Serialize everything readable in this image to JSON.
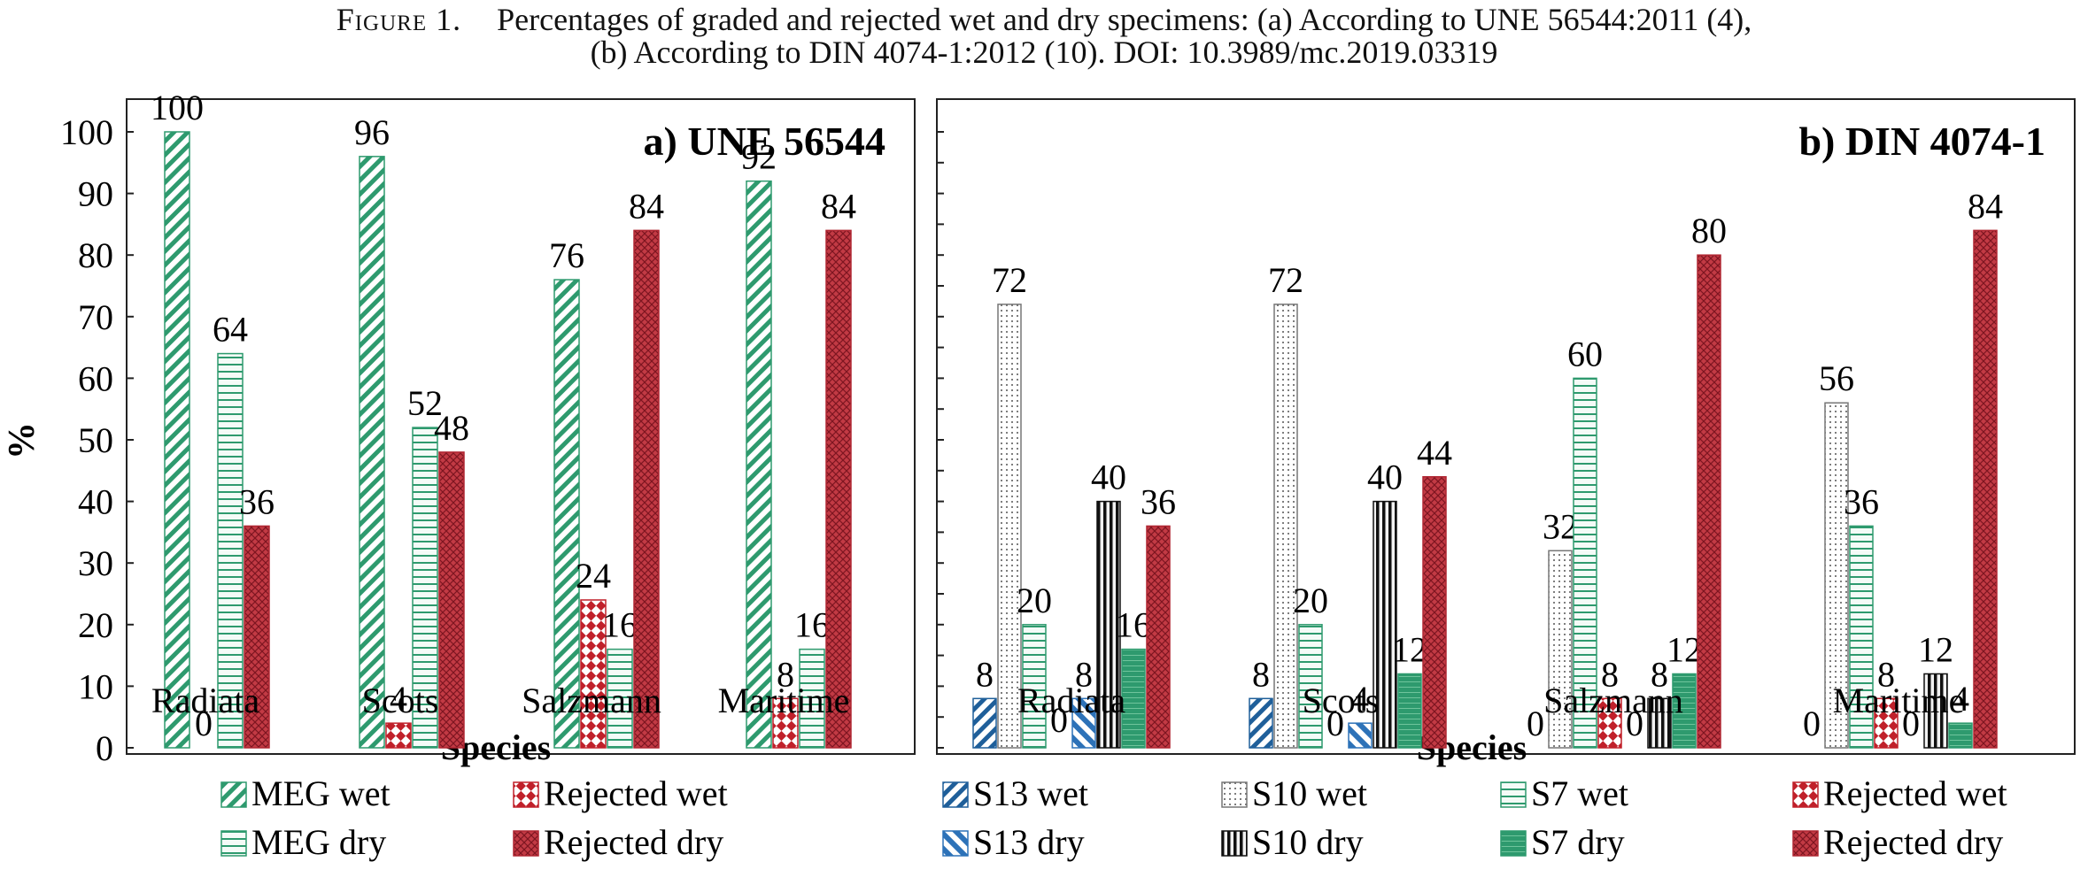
{
  "caption": {
    "label": "Figure 1.",
    "line1": "Percentages of graded and rejected wet and dry specimens: (a) According to UNE 56544:2011 (4),",
    "line2": "(b) According to DIN 4074-1:2012 (10). DOI: 10.3989/mc.2019.03319"
  },
  "chart_data": [
    {
      "type": "bar",
      "title": "a) UNE 56544",
      "xlabel": "Species",
      "ylabel": "%",
      "ylim": [
        0,
        100
      ],
      "yticks": [
        0,
        10,
        20,
        30,
        40,
        50,
        60,
        70,
        80,
        90,
        100
      ],
      "grid": false,
      "legend_position": "bottom",
      "categories": [
        "Radiata",
        "Scots",
        "Salzmann",
        "Maritime"
      ],
      "series": [
        {
          "name": "MEG wet",
          "values": [
            100,
            96,
            76,
            92
          ],
          "color": "#2e9a6e",
          "pattern": "diag"
        },
        {
          "name": "Rejected wet",
          "values": [
            0,
            4,
            24,
            8
          ],
          "color": "#c0202a",
          "pattern": "check"
        },
        {
          "name": "MEG dry",
          "values": [
            64,
            52,
            16,
            16
          ],
          "color": "#2e9a6e",
          "pattern": "hlines"
        },
        {
          "name": "Rejected dry",
          "values": [
            36,
            48,
            84,
            84
          ],
          "color": "#b02632",
          "pattern": "cross"
        }
      ],
      "data_labels": [
        [
          "100",
          "0",
          "64",
          "36"
        ],
        [
          "96",
          "4",
          "52",
          "48"
        ],
        [
          "76",
          "24",
          "16",
          "84"
        ],
        [
          "92",
          "8",
          "16",
          "84"
        ]
      ]
    },
    {
      "type": "bar",
      "title": "b) DIN 4074-1",
      "xlabel": "Species",
      "ylim": [
        0,
        100
      ],
      "grid": false,
      "legend_position": "bottom",
      "categories": [
        "Radiata",
        "Scots",
        "Salzmann",
        "Maritime"
      ],
      "series": [
        {
          "name": "S13 wet",
          "values": [
            8,
            8,
            0,
            0
          ],
          "color": "#1f5f9a",
          "pattern": "diag"
        },
        {
          "name": "S10 wet",
          "values": [
            72,
            72,
            32,
            56
          ],
          "color": "#555555",
          "pattern": "dots"
        },
        {
          "name": "S7 wet",
          "values": [
            20,
            20,
            60,
            36
          ],
          "color": "#2e9a6e",
          "pattern": "hlines"
        },
        {
          "name": "Rejected wet",
          "values": [
            0,
            0,
            8,
            8
          ],
          "color": "#c0202a",
          "pattern": "check"
        },
        {
          "name": "S13 dry",
          "values": [
            8,
            4,
            0,
            0
          ],
          "color": "#2d72b8",
          "pattern": "diag2"
        },
        {
          "name": "S10 dry",
          "values": [
            40,
            40,
            8,
            12
          ],
          "color": "#111111",
          "pattern": "vlines"
        },
        {
          "name": "S7 dry",
          "values": [
            16,
            12,
            12,
            4
          ],
          "color": "#2e9a6e",
          "pattern": "solidgreen"
        },
        {
          "name": "Rejected dry",
          "values": [
            36,
            44,
            80,
            84
          ],
          "color": "#b02632",
          "pattern": "cross"
        }
      ],
      "data_labels": [
        [
          "8",
          "72",
          "20",
          "",
          "8",
          "40",
          "16",
          "36"
        ],
        [
          "8",
          "72",
          "20",
          "0",
          "4",
          "40",
          "12",
          "44"
        ],
        [
          "0",
          "32",
          "60",
          "8",
          "0",
          "8",
          "12",
          "80"
        ],
        [
          "0",
          "56",
          "36",
          "8",
          "0",
          "12",
          "4",
          "84"
        ]
      ],
      "extra_labels": [
        {
          "text": "0",
          "group": 0,
          "series": 3
        }
      ]
    }
  ]
}
